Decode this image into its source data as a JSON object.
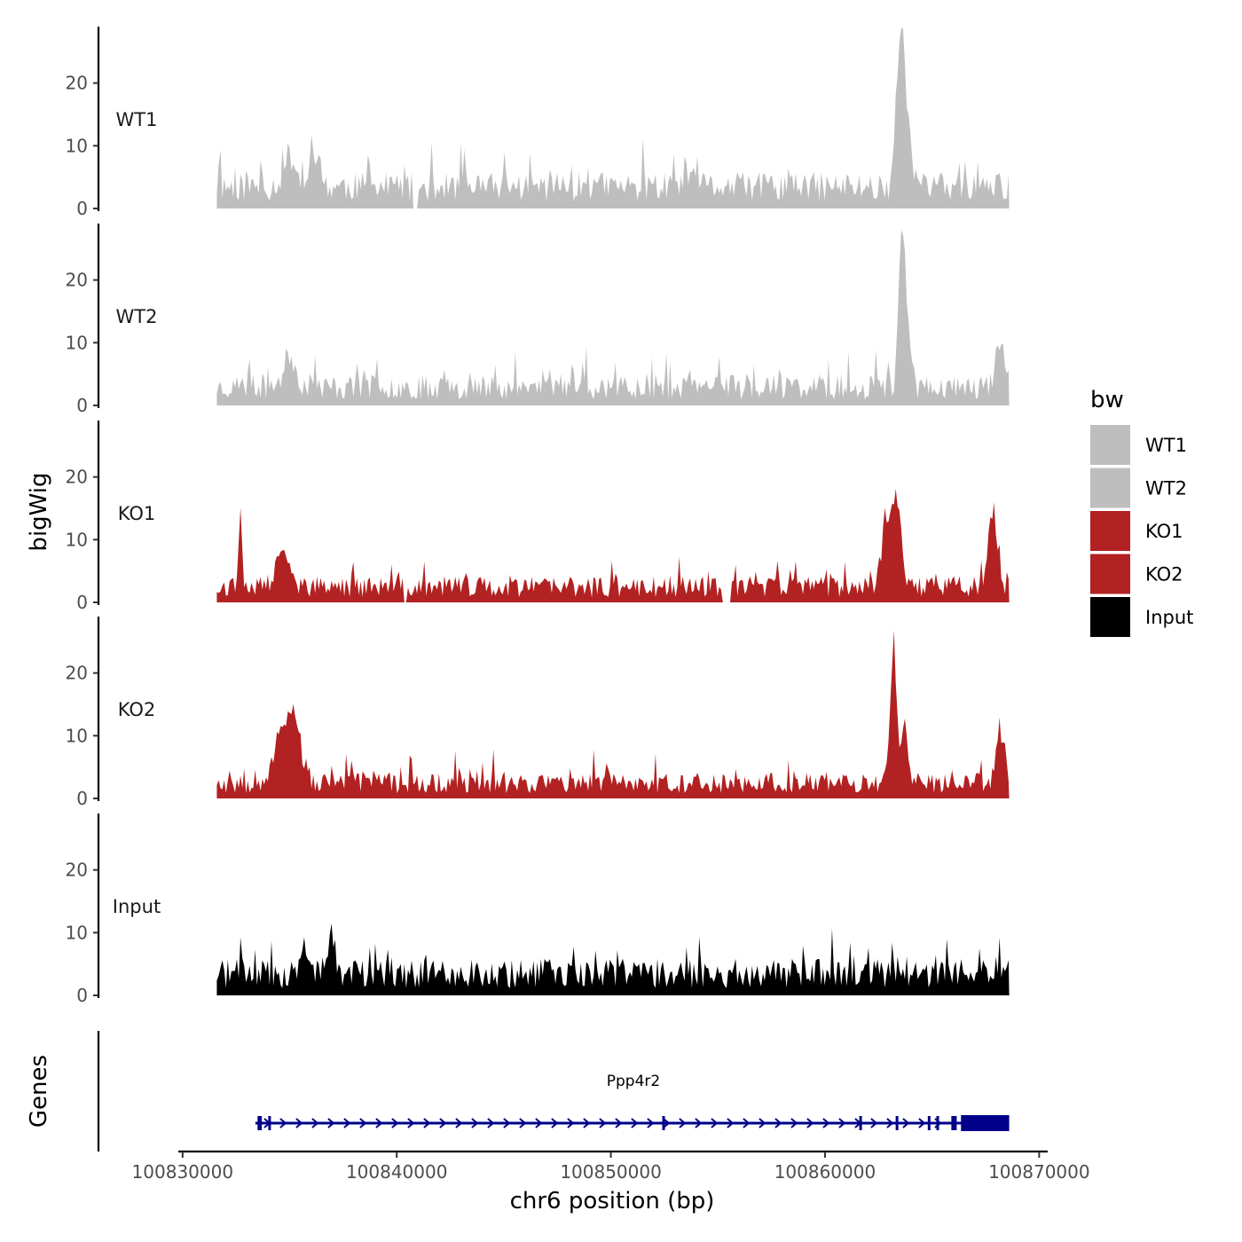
{
  "chart_data": {
    "type": "area",
    "ylabel": "bigWig",
    "xlabel": "chr6 position (bp)",
    "genes_label": "Genes",
    "xlim": [
      100829800,
      100870400
    ],
    "x_ticks": [
      100830000,
      100840000,
      100850000,
      100860000,
      100870000
    ],
    "x_tick_labels": [
      "100830000",
      "100840000",
      "100850000",
      "100860000",
      "100870000"
    ],
    "ylim": [
      0,
      29
    ],
    "y_ticks": [
      0,
      10,
      20
    ],
    "y_tick_labels": [
      "0",
      "10",
      "20"
    ],
    "signal_range": [
      100831600,
      100868600
    ],
    "tracks": [
      {
        "name": "WT1",
        "color": "#bebebe",
        "seed": 11,
        "baseline": 4.5,
        "gaps": [
          [
            100840700,
            100841000
          ]
        ],
        "peaks": [
          {
            "x": 100863600,
            "h": 28,
            "w": 220
          },
          {
            "x": 100863300,
            "h": 10,
            "w": 150
          },
          {
            "x": 100864000,
            "h": 8,
            "w": 150
          },
          {
            "x": 100836200,
            "h": 5,
            "w": 300
          },
          {
            "x": 100835000,
            "h": 5,
            "w": 400
          }
        ]
      },
      {
        "name": "WT2",
        "color": "#bebebe",
        "seed": 23,
        "baseline": 3.8,
        "gaps": [],
        "peaks": [
          {
            "x": 100863600,
            "h": 24.5,
            "w": 220
          },
          {
            "x": 100863900,
            "h": 8,
            "w": 150
          },
          {
            "x": 100835000,
            "h": 5,
            "w": 400
          },
          {
            "x": 100868200,
            "h": 6,
            "w": 300
          }
        ]
      },
      {
        "name": "KO1",
        "color": "#b22222",
        "seed": 37,
        "baseline": 3.2,
        "gaps": [
          [
            100840300,
            100840500
          ],
          [
            100855200,
            100855600
          ]
        ],
        "peaks": [
          {
            "x": 100863300,
            "h": 14,
            "w": 350
          },
          {
            "x": 100862800,
            "h": 7,
            "w": 300
          },
          {
            "x": 100834700,
            "h": 7,
            "w": 400
          },
          {
            "x": 100832700,
            "h": 13,
            "w": 120
          },
          {
            "x": 100867800,
            "h": 11,
            "w": 300
          }
        ]
      },
      {
        "name": "KO2",
        "color": "#b22222",
        "seed": 53,
        "baseline": 3.2,
        "gaps": [],
        "peaks": [
          {
            "x": 100863200,
            "h": 21,
            "w": 200
          },
          {
            "x": 100863700,
            "h": 10,
            "w": 200
          },
          {
            "x": 100834800,
            "h": 10,
            "w": 600
          },
          {
            "x": 100835300,
            "h": 6,
            "w": 300
          },
          {
            "x": 100868200,
            "h": 8,
            "w": 300
          }
        ]
      },
      {
        "name": "Input",
        "color": "#000000",
        "seed": 71,
        "baseline": 4.5,
        "gaps": [],
        "peaks": [
          {
            "x": 100837000,
            "h": 6,
            "w": 200
          },
          {
            "x": 100835700,
            "h": 5,
            "w": 200
          }
        ]
      }
    ],
    "legend": {
      "title": "bw",
      "items": [
        {
          "label": "WT1",
          "color": "#bebebe"
        },
        {
          "label": "WT2",
          "color": "#bebebe"
        },
        {
          "label": "KO1",
          "color": "#b22222"
        },
        {
          "label": "KO2",
          "color": "#b22222"
        },
        {
          "label": "Input",
          "color": "#000000"
        }
      ]
    },
    "gene": {
      "name": "Ppp4r2",
      "color": "#00008b",
      "start": 100833400,
      "end": 100868600,
      "strand": "+",
      "exons": [
        [
          100833500,
          100833700
        ],
        [
          100834000,
          100834060
        ],
        [
          100852400,
          100852520
        ],
        [
          100861600,
          100861650
        ],
        [
          100863300,
          100863350
        ],
        [
          100864800,
          100864880
        ],
        [
          100865200,
          100865260
        ],
        [
          100865900,
          100866150
        ],
        [
          100866350,
          100868600
        ]
      ]
    }
  }
}
